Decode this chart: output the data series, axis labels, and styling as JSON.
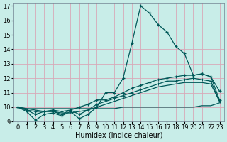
{
  "xlabel": "Humidex (Indice chaleur)",
  "xlim": [
    -0.5,
    23.5
  ],
  "ylim": [
    9,
    17.2
  ],
  "xticks": [
    0,
    1,
    2,
    3,
    4,
    5,
    6,
    7,
    8,
    9,
    10,
    11,
    12,
    13,
    14,
    15,
    16,
    17,
    18,
    19,
    20,
    21,
    22,
    23
  ],
  "yticks": [
    9,
    10,
    11,
    12,
    13,
    14,
    15,
    16,
    17
  ],
  "bg_color": "#c8ede8",
  "grid_color": "#d8a8b8",
  "line_color": "#005858",
  "fontsize": 7,
  "tick_fontsize": 6,
  "series1_x": [
    0,
    1,
    2,
    3,
    4,
    5,
    6,
    7,
    8,
    9,
    10,
    11,
    12,
    13,
    14,
    15,
    16,
    17,
    18,
    19,
    20,
    21,
    22,
    23
  ],
  "series1_y": [
    10.0,
    9.7,
    9.1,
    9.5,
    9.6,
    9.4,
    9.7,
    9.2,
    9.5,
    10.0,
    11.0,
    11.0,
    12.0,
    14.4,
    17.0,
    16.5,
    15.7,
    15.2,
    14.2,
    13.7,
    12.2,
    12.3,
    12.1,
    11.1
  ],
  "series2_x": [
    0,
    1,
    2,
    3,
    4,
    5,
    6,
    7,
    8,
    9,
    10,
    11,
    12,
    13,
    14,
    15,
    16,
    17,
    18,
    19,
    20,
    21,
    22,
    23
  ],
  "series2_y": [
    10.0,
    9.8,
    9.7,
    9.7,
    9.8,
    9.7,
    9.8,
    10.0,
    10.2,
    10.5,
    10.5,
    10.7,
    11.0,
    11.3,
    11.5,
    11.7,
    11.9,
    12.0,
    12.1,
    12.2,
    12.2,
    12.3,
    12.1,
    10.5
  ],
  "series3_x": [
    0,
    1,
    2,
    3,
    4,
    5,
    6,
    7,
    8,
    9,
    10,
    11,
    12,
    13,
    14,
    15,
    16,
    17,
    18,
    19,
    20,
    21,
    22,
    23
  ],
  "series3_y": [
    10.0,
    9.9,
    9.8,
    9.7,
    9.7,
    9.6,
    9.6,
    9.7,
    9.8,
    10.0,
    10.2,
    10.4,
    10.6,
    10.8,
    11.0,
    11.2,
    11.4,
    11.5,
    11.6,
    11.7,
    11.7,
    11.7,
    11.6,
    10.4
  ],
  "series4_x": [
    0,
    1,
    2,
    3,
    4,
    5,
    6,
    7,
    8,
    9,
    10,
    11,
    12,
    13,
    14,
    15,
    16,
    17,
    18,
    19,
    20,
    21,
    22,
    23
  ],
  "series4_y": [
    10.0,
    9.9,
    9.9,
    9.9,
    9.9,
    9.9,
    9.9,
    9.9,
    9.9,
    9.9,
    9.9,
    9.9,
    10.0,
    10.0,
    10.0,
    10.0,
    10.0,
    10.0,
    10.0,
    10.0,
    10.0,
    10.1,
    10.1,
    10.3
  ],
  "series5_x": [
    0,
    1,
    2,
    3,
    4,
    5,
    6,
    7,
    8,
    9,
    10,
    11,
    12,
    13,
    14,
    15,
    16,
    17,
    18,
    19,
    20,
    21,
    22,
    23
  ],
  "series5_y": [
    10.0,
    9.8,
    9.5,
    9.7,
    9.7,
    9.5,
    9.8,
    9.5,
    9.8,
    10.2,
    10.4,
    10.6,
    10.8,
    11.0,
    11.2,
    11.4,
    11.6,
    11.8,
    11.8,
    11.9,
    12.0,
    11.9,
    11.8,
    10.4
  ]
}
